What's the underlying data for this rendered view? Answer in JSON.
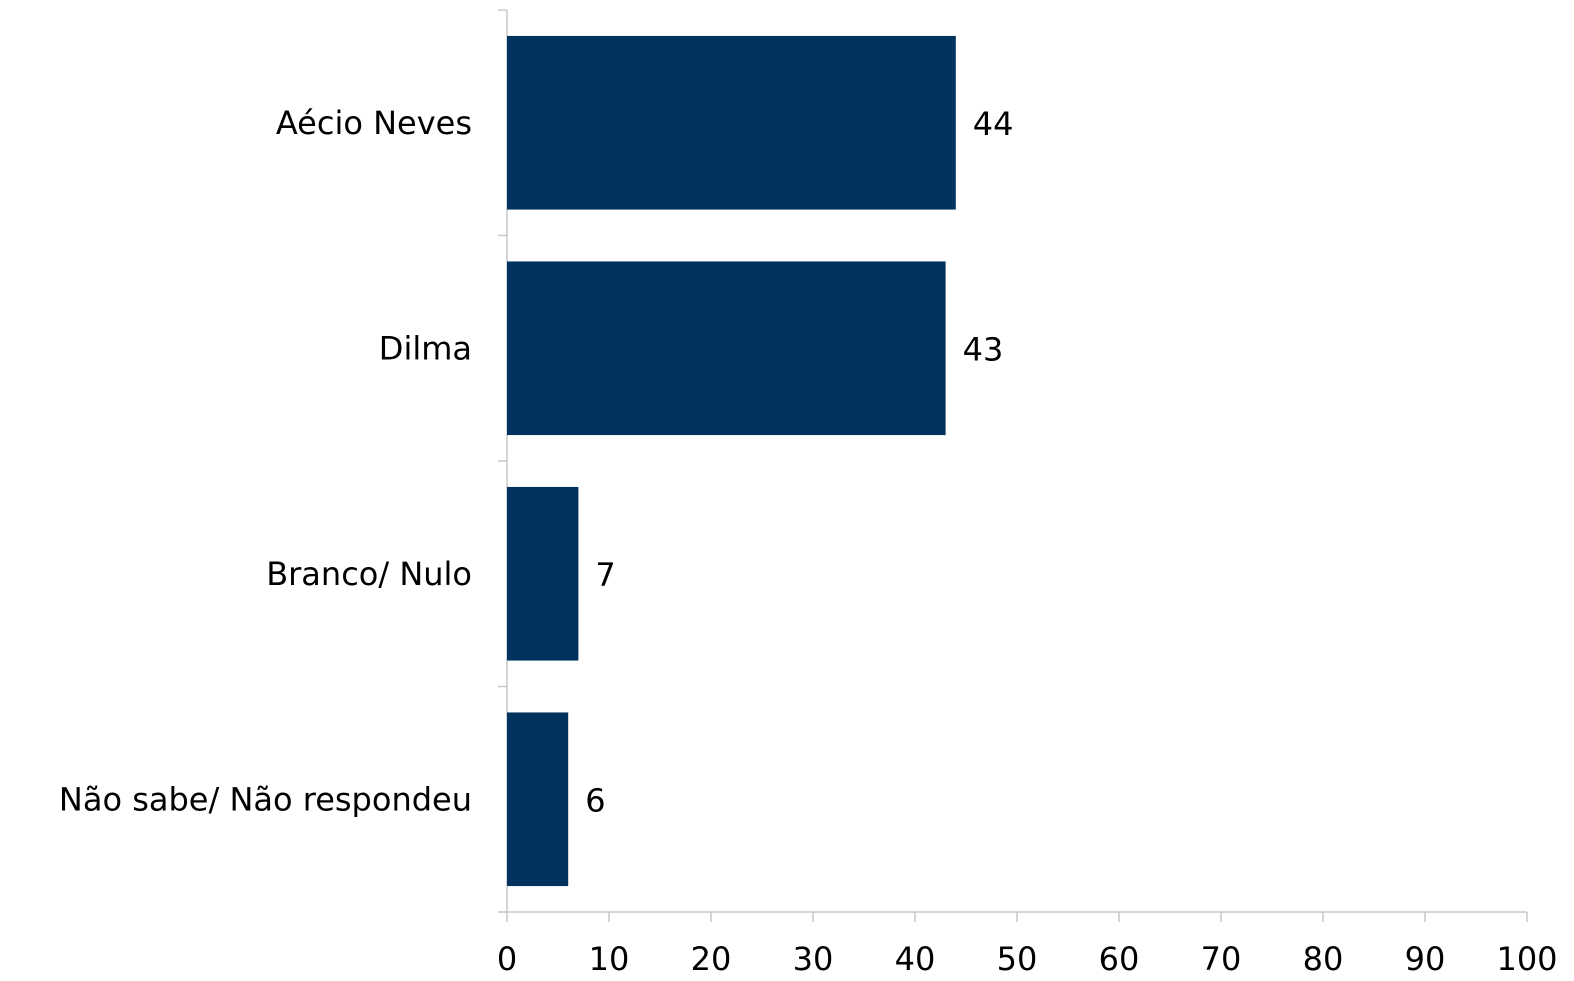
{
  "chart_data": {
    "type": "bar",
    "orientation": "horizontal",
    "categories": [
      "Aécio Neves",
      "Dilma",
      "Branco/ Nulo",
      "Não sabe/ Não respondeu"
    ],
    "values": [
      44,
      43,
      7,
      6
    ],
    "xlim": [
      0,
      100
    ],
    "x_ticks": [
      0,
      10,
      20,
      30,
      40,
      50,
      60,
      70,
      80,
      90,
      100
    ],
    "bar_color": "#02335f",
    "grid": false,
    "legend": "none",
    "title": "",
    "xlabel": "",
    "ylabel": ""
  }
}
